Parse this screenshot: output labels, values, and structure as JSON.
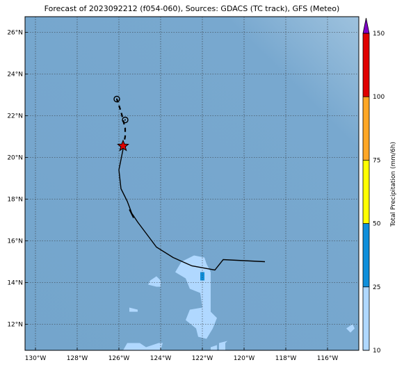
{
  "title": "Forecast of 2023092212 (f054-060), Sources: GDACS (TC track), GFS (Meteo)",
  "map": {
    "lon_range": [
      -130.5,
      -114.5
    ],
    "lat_range": [
      10.75,
      26.75
    ],
    "lat_ticks": [
      {
        "value": 12,
        "label": "12°N"
      },
      {
        "value": 14,
        "label": "14°N"
      },
      {
        "value": 16,
        "label": "16°N"
      },
      {
        "value": 18,
        "label": "18°N"
      },
      {
        "value": 20,
        "label": "20°N"
      },
      {
        "value": 22,
        "label": "22°N"
      },
      {
        "value": 24,
        "label": "24°N"
      },
      {
        "value": 26,
        "label": "26°N"
      }
    ],
    "lon_ticks": [
      {
        "value": -130,
        "label": "130°W"
      },
      {
        "value": -128,
        "label": "128°W"
      },
      {
        "value": -126,
        "label": "126°W"
      },
      {
        "value": -124,
        "label": "124°W"
      },
      {
        "value": -122,
        "label": "122°W"
      },
      {
        "value": -120,
        "label": "120°W"
      },
      {
        "value": -118,
        "label": "118°W"
      },
      {
        "value": -116,
        "label": "116°W"
      }
    ],
    "grid": true,
    "ocean_color": "#78a8cf",
    "past_track": [
      [
        -119.0,
        15.0
      ],
      [
        -121.0,
        15.1
      ],
      [
        -121.4,
        14.6
      ],
      [
        -122.5,
        14.8
      ],
      [
        -123.4,
        15.2
      ],
      [
        -124.2,
        15.7
      ],
      [
        -125.1,
        16.9
      ],
      [
        -125.5,
        17.5
      ],
      [
        -125.3,
        17.1
      ],
      [
        -125.6,
        17.9
      ],
      [
        -125.9,
        18.5
      ],
      [
        -126.0,
        19.4
      ],
      [
        -125.8,
        20.4
      ]
    ],
    "forecast_track": [
      [
        -125.8,
        20.5
      ],
      [
        -125.7,
        21.0
      ],
      [
        -125.7,
        21.4
      ],
      [
        -125.9,
        22.2
      ],
      [
        -126.1,
        22.8
      ]
    ],
    "current_position": {
      "lon": -125.8,
      "lat": 20.55,
      "color": "#e00000"
    },
    "forecast_points": [
      {
        "lon": -125.7,
        "lat": 21.8
      },
      {
        "lon": -126.1,
        "lat": 22.8
      }
    ],
    "precip_areas": [
      {
        "level": "10-25",
        "color": "#b0d8ff",
        "polygon": [
          [
            -121.8,
            14.9
          ],
          [
            -121.9,
            15.2
          ],
          [
            -122.4,
            15.3
          ],
          [
            -123.0,
            15.0
          ],
          [
            -123.3,
            14.5
          ],
          [
            -122.8,
            14.2
          ],
          [
            -122.6,
            13.7
          ],
          [
            -122.1,
            13.5
          ],
          [
            -122.0,
            12.8
          ],
          [
            -122.6,
            12.7
          ],
          [
            -122.8,
            12.2
          ],
          [
            -122.3,
            11.8
          ],
          [
            -122.2,
            11.4
          ],
          [
            -121.8,
            11.3
          ],
          [
            -121.5,
            11.8
          ],
          [
            -121.3,
            12.3
          ],
          [
            -121.6,
            12.6
          ],
          [
            -121.6,
            13.7
          ],
          [
            -121.6,
            14.5
          ]
        ]
      },
      {
        "level": "10-25",
        "color": "#b0d8ff",
        "polygon": [
          [
            -124.5,
            14.1
          ],
          [
            -124.2,
            14.3
          ],
          [
            -124.0,
            14.1
          ],
          [
            -124.0,
            13.8
          ],
          [
            -124.2,
            13.8
          ],
          [
            -124.6,
            13.9
          ]
        ]
      },
      {
        "level": "10-25",
        "color": "#b0d8ff",
        "polygon": [
          [
            -125.5,
            12.8
          ],
          [
            -125.1,
            12.7
          ],
          [
            -125.1,
            12.6
          ],
          [
            -125.5,
            12.6
          ]
        ]
      },
      {
        "level": "10-25",
        "color": "#b0d8ff",
        "polygon": [
          [
            -125.8,
            10.75
          ],
          [
            -125.6,
            11.1
          ],
          [
            -125.0,
            11.1
          ],
          [
            -124.7,
            10.9
          ],
          [
            -124.1,
            11.1
          ],
          [
            -123.9,
            11.1
          ],
          [
            -124.0,
            10.75
          ]
        ]
      },
      {
        "level": "10-25",
        "color": "#b0d8ff",
        "polygon": [
          [
            -121.6,
            10.9
          ],
          [
            -121.3,
            11.0
          ],
          [
            -121.3,
            10.75
          ],
          [
            -121.6,
            10.75
          ]
        ]
      },
      {
        "level": "10-25",
        "color": "#b0d8ff",
        "polygon": [
          [
            -120.9,
            11.1
          ],
          [
            -120.8,
            11.2
          ],
          [
            -121.2,
            11.1
          ],
          [
            -121.2,
            10.75
          ],
          [
            -120.9,
            10.75
          ]
        ]
      },
      {
        "level": "10-25",
        "color": "#b0d8ff",
        "polygon": [
          [
            -115.1,
            11.8
          ],
          [
            -114.8,
            12.0
          ],
          [
            -114.7,
            11.8
          ],
          [
            -114.9,
            11.6
          ]
        ]
      },
      {
        "level": "25-50",
        "color": "#0f8fdb",
        "polygon": [
          [
            -122.1,
            14.5
          ],
          [
            -121.9,
            14.5
          ],
          [
            -121.9,
            14.1
          ],
          [
            -122.1,
            14.1
          ]
        ]
      }
    ]
  },
  "colorbar": {
    "label": "Total Precipitation (mm/6h)",
    "levels": [
      {
        "value": 10,
        "label": "10"
      },
      {
        "value": 25,
        "label": "25"
      },
      {
        "value": 50,
        "label": "50"
      },
      {
        "value": 75,
        "label": "75"
      },
      {
        "value": 100,
        "label": "100"
      },
      {
        "value": 150,
        "label": "150"
      }
    ],
    "colors": [
      "#b0d8ff",
      "#0f8fdb",
      "#ffff00",
      "#ffa726",
      "#e00000"
    ],
    "extend_color": "#8000c8"
  }
}
